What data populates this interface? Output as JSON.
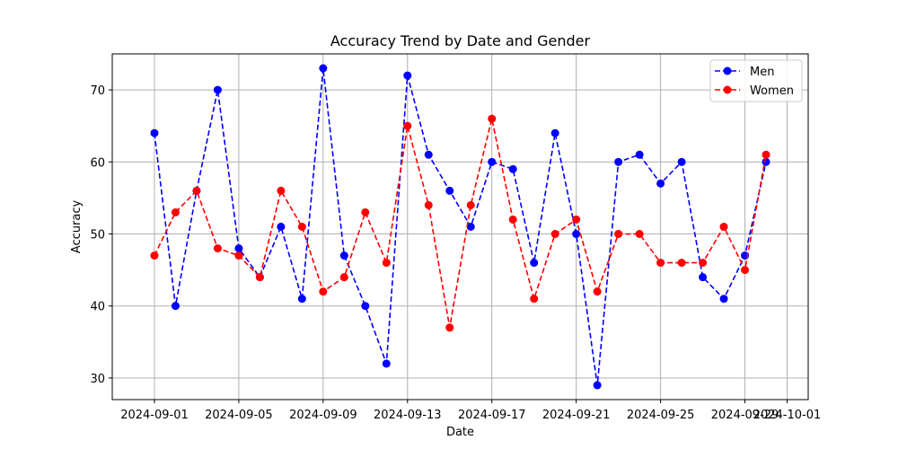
{
  "chart_data": {
    "type": "line",
    "title": "Accuracy Trend by Date and Gender",
    "xlabel": "Date",
    "ylabel": "Accuracy",
    "ylim": [
      27,
      75
    ],
    "xlim": [
      "2024-08-30",
      "2024-10-02"
    ],
    "grid": true,
    "legend_position": "top-right",
    "x_ticks": [
      "2024-09-01",
      "2024-09-05",
      "2024-09-09",
      "2024-09-13",
      "2024-09-17",
      "2024-09-21",
      "2024-09-25",
      "2024-09-29",
      "2024-10-01"
    ],
    "y_ticks": [
      30,
      40,
      50,
      60,
      70
    ],
    "x": [
      "2024-09-01",
      "2024-09-02",
      "2024-09-03",
      "2024-09-04",
      "2024-09-05",
      "2024-09-06",
      "2024-09-07",
      "2024-09-08",
      "2024-09-09",
      "2024-09-10",
      "2024-09-11",
      "2024-09-12",
      "2024-09-13",
      "2024-09-14",
      "2024-09-15",
      "2024-09-16",
      "2024-09-17",
      "2024-09-18",
      "2024-09-19",
      "2024-09-20",
      "2024-09-21",
      "2024-09-22",
      "2024-09-23",
      "2024-09-24",
      "2024-09-25",
      "2024-09-26",
      "2024-09-27",
      "2024-09-28",
      "2024-09-29",
      "2024-09-30"
    ],
    "series": [
      {
        "name": "Men",
        "color": "#0000ff",
        "values": [
          64,
          40,
          56,
          70,
          48,
          44,
          51,
          41,
          73,
          47,
          40,
          32,
          72,
          61,
          56,
          51,
          60,
          59,
          46,
          64,
          50,
          29,
          60,
          61,
          57,
          60,
          44,
          41,
          47,
          60
        ]
      },
      {
        "name": "Women",
        "color": "#ff0000",
        "values": [
          47,
          53,
          56,
          48,
          47,
          44,
          56,
          51,
          42,
          44,
          53,
          46,
          65,
          54,
          37,
          54,
          66,
          52,
          41,
          50,
          52,
          42,
          50,
          50,
          46,
          46,
          46,
          51,
          45,
          61
        ]
      }
    ]
  }
}
